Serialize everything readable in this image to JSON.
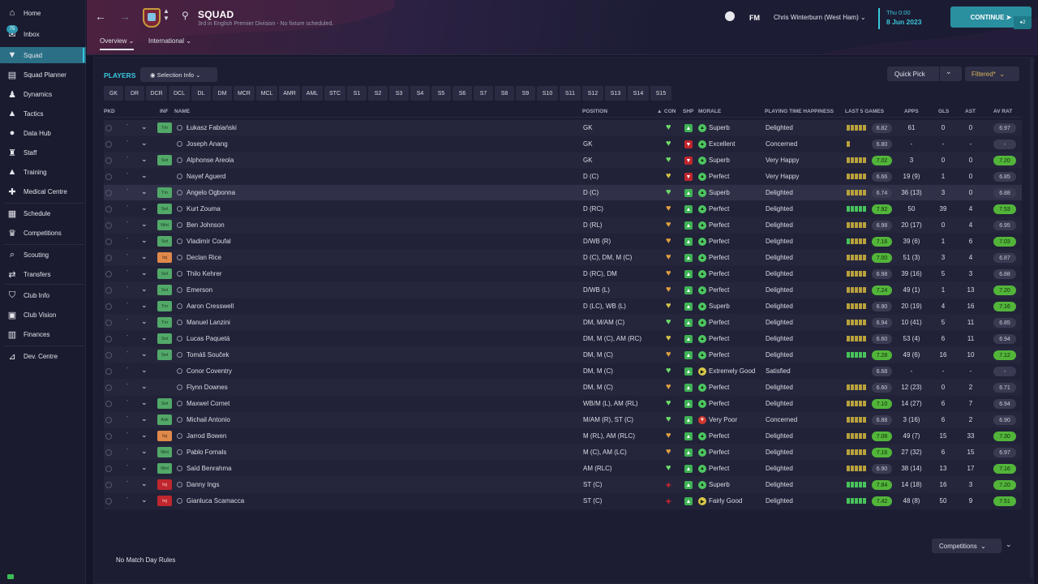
{
  "sidebar": {
    "items": [
      {
        "label": "Home",
        "icon": "home-icon"
      },
      {
        "label": "Inbox",
        "icon": "inbox-icon",
        "badge": "75"
      },
      {
        "label": "Squad",
        "icon": "shirt-icon"
      },
      {
        "label": "Squad Planner",
        "icon": "clipboard-icon"
      },
      {
        "label": "Dynamics",
        "icon": "dynamics-icon"
      },
      {
        "label": "Tactics",
        "icon": "tactics-icon"
      },
      {
        "label": "Data Hub",
        "icon": "data-hub-icon"
      },
      {
        "label": "Staff",
        "icon": "staff-icon"
      },
      {
        "label": "Training",
        "icon": "training-icon"
      },
      {
        "label": "Medical Centre",
        "icon": "medical-icon"
      },
      {
        "label": "Schedule",
        "icon": "calendar-icon"
      },
      {
        "label": "Competitions",
        "icon": "trophy-icon"
      },
      {
        "label": "Scouting",
        "icon": "scouting-icon"
      },
      {
        "label": "Transfers",
        "icon": "transfers-icon"
      },
      {
        "label": "Club Info",
        "icon": "shield-icon"
      },
      {
        "label": "Club Vision",
        "icon": "vision-icon"
      },
      {
        "label": "Finances",
        "icon": "finances-icon"
      },
      {
        "label": "Dev. Centre",
        "icon": "dev-centre-icon"
      }
    ],
    "active": "Squad"
  },
  "header": {
    "title": "SQUAD",
    "subtitle": "3rd in English Premier Division - No fixture scheduled.",
    "tabs": [
      "Overview",
      "International"
    ],
    "fm_label": "FM",
    "manager": "Chris Winterburn (West Ham)",
    "date_day": "Thu 0:00",
    "date": "8 Jun 2023",
    "continue_label": "CONTINUE",
    "continue_count": "2"
  },
  "players_title": "PLAYERS",
  "selection_info_label": "Selection Info",
  "quick_pick_label": "Quick Pick",
  "filtered_label": "Filtered*",
  "position_filters": [
    "GK",
    "DR",
    "DCR",
    "DCL",
    "DL",
    "DM",
    "MCR",
    "MCL",
    "AMR",
    "AML",
    "STC",
    "S1",
    "S2",
    "S3",
    "S4",
    "S5",
    "S6",
    "S7",
    "S8",
    "S9",
    "S10",
    "S11",
    "S12",
    "S13",
    "S14",
    "S15"
  ],
  "columns": {
    "pkd": "PKD",
    "inf": "INF",
    "name": "NAME",
    "position": "POSITION",
    "con": "CON",
    "shp": "SHP",
    "morale": "MORALE",
    "happiness": "PLAYING TIME HAPPINESS",
    "last5": "LAST 5 GAMES",
    "apps": "APPS",
    "gls": "GLS",
    "ast": "AST",
    "avrat": "AV RAT"
  },
  "players": [
    {
      "inf": "Tm",
      "name": "Łukasz Fabiański",
      "position": "GK",
      "con": "g",
      "shp": "g",
      "morale_icon": "g",
      "morale": "Superb",
      "happiness": "Delighted",
      "bars": "yyyyy",
      "last5": "6.82",
      "last5_good": false,
      "apps": "61",
      "gls": "0",
      "ast": "0",
      "avrat": "6.97",
      "avrat_good": false
    },
    {
      "inf": "",
      "name": "Joseph Anang",
      "position": "GK",
      "con": "g",
      "shp": "r",
      "morale_icon": "g",
      "morale": "Excellent",
      "happiness": "Concerned",
      "bars": "y",
      "last5": "6.80",
      "last5_good": false,
      "apps": "-",
      "gls": "-",
      "ast": "-",
      "avrat": "-",
      "avrat_good": false
    },
    {
      "inf": "Set",
      "name": "Alphonse Areola",
      "position": "GK",
      "con": "g",
      "shp": "r",
      "morale_icon": "g",
      "morale": "Superb",
      "happiness": "Very Happy",
      "bars": "yyyyy",
      "last5": "7.02",
      "last5_good": true,
      "apps": "3",
      "gls": "0",
      "ast": "0",
      "avrat": "7.20",
      "avrat_good": true
    },
    {
      "inf": "",
      "name": "Nayef Aguerd",
      "position": "D (C)",
      "con": "y",
      "shp": "r",
      "morale_icon": "g",
      "morale": "Perfect",
      "happiness": "Very Happy",
      "bars": "yyyyy",
      "last5": "6.66",
      "last5_good": false,
      "apps": "19 (9)",
      "gls": "1",
      "ast": "0",
      "avrat": "6.85",
      "avrat_good": false
    },
    {
      "inf": "Tm",
      "name": "Angelo Ogbonna",
      "position": "D (C)",
      "con": "g",
      "shp": "g",
      "morale_icon": "g",
      "morale": "Superb",
      "happiness": "Delighted",
      "bars": "yyyyy",
      "last5": "6.74",
      "last5_good": false,
      "apps": "36 (13)",
      "gls": "3",
      "ast": "0",
      "avrat": "6.88",
      "avrat_good": false
    },
    {
      "inf": "Set",
      "name": "Kurt Zouma",
      "position": "D (RC)",
      "con": "o",
      "shp": "g",
      "morale_icon": "g",
      "morale": "Perfect",
      "happiness": "Delighted",
      "bars": "ggggg",
      "last5": "7.92",
      "last5_good": true,
      "apps": "50",
      "gls": "39",
      "ast": "4",
      "avrat": "7.53",
      "avrat_good": true
    },
    {
      "inf": "Wnt",
      "name": "Ben Johnson",
      "position": "D (RL)",
      "con": "o",
      "shp": "g",
      "morale_icon": "g",
      "morale": "Perfect",
      "happiness": "Delighted",
      "bars": "yyyyy",
      "last5": "6.98",
      "last5_good": false,
      "apps": "20 (17)",
      "gls": "0",
      "ast": "4",
      "avrat": "6.95",
      "avrat_good": false
    },
    {
      "inf": "Set",
      "name": "Vladimír Coufal",
      "position": "D/WB (R)",
      "con": "o",
      "shp": "g",
      "morale_icon": "g",
      "morale": "Perfect",
      "happiness": "Delighted",
      "bars": "gyyyy",
      "last5": "7.16",
      "last5_good": true,
      "apps": "39 (6)",
      "gls": "1",
      "ast": "6",
      "avrat": "7.03",
      "avrat_good": true
    },
    {
      "inf": "Inj-o",
      "name": "Declan Rice",
      "position": "D (C), DM, M (C)",
      "con": "o",
      "shp": "g",
      "morale_icon": "g",
      "morale": "Perfect",
      "happiness": "Delighted",
      "bars": "yyyyy",
      "last5": "7.00",
      "last5_good": true,
      "apps": "51 (3)",
      "gls": "3",
      "ast": "4",
      "avrat": "6.87",
      "avrat_good": false
    },
    {
      "inf": "Set",
      "name": "Thilo Kehrer",
      "position": "D (RC), DM",
      "con": "o",
      "shp": "g",
      "morale_icon": "g",
      "morale": "Perfect",
      "happiness": "Delighted",
      "bars": "yyyyy",
      "last5": "6.98",
      "last5_good": false,
      "apps": "39 (16)",
      "gls": "5",
      "ast": "3",
      "avrat": "6.88",
      "avrat_good": false
    },
    {
      "inf": "Set",
      "name": "Emerson",
      "position": "D/WB (L)",
      "con": "o",
      "shp": "g",
      "morale_icon": "g",
      "morale": "Perfect",
      "happiness": "Delighted",
      "bars": "yyyyy",
      "last5": "7.24",
      "last5_good": true,
      "apps": "49 (1)",
      "gls": "1",
      "ast": "13",
      "avrat": "7.20",
      "avrat_good": true
    },
    {
      "inf": "Tm",
      "name": "Aaron Cresswell",
      "position": "D (LC), WB (L)",
      "con": "y",
      "shp": "g",
      "morale_icon": "g",
      "morale": "Superb",
      "happiness": "Delighted",
      "bars": "yyyyy",
      "last5": "6.90",
      "last5_good": false,
      "apps": "20 (19)",
      "gls": "4",
      "ast": "16",
      "avrat": "7.16",
      "avrat_good": true
    },
    {
      "inf": "Tm",
      "name": "Manuel Lanzini",
      "position": "DM, M/AM (C)",
      "con": "g",
      "shp": "g",
      "morale_icon": "g",
      "morale": "Perfect",
      "happiness": "Delighted",
      "bars": "yyyyy",
      "last5": "6.94",
      "last5_good": false,
      "apps": "10 (41)",
      "gls": "5",
      "ast": "11",
      "avrat": "6.85",
      "avrat_good": false
    },
    {
      "inf": "Set",
      "name": "Lucas Paquetá",
      "position": "DM, M (C), AM (RC)",
      "con": "y",
      "shp": "g",
      "morale_icon": "g",
      "morale": "Perfect",
      "happiness": "Delighted",
      "bars": "yyyyy",
      "last5": "6.60",
      "last5_good": false,
      "apps": "53 (4)",
      "gls": "6",
      "ast": "11",
      "avrat": "6.94",
      "avrat_good": false
    },
    {
      "inf": "Set",
      "name": "Tomáš Souček",
      "position": "DM, M (C)",
      "con": "o",
      "shp": "g",
      "morale_icon": "g",
      "morale": "Perfect",
      "happiness": "Delighted",
      "bars": "ggggg",
      "last5": "7.28",
      "last5_good": true,
      "apps": "49 (6)",
      "gls": "16",
      "ast": "10",
      "avrat": "7.12",
      "avrat_good": true
    },
    {
      "inf": "",
      "name": "Conor Coventry",
      "position": "DM, M (C)",
      "con": "g",
      "shp": "g",
      "morale_icon": "y",
      "morale": "Extremely Good",
      "happiness": "Satisfied",
      "bars": "",
      "last5": "6.68",
      "last5_good": false,
      "apps": "-",
      "gls": "-",
      "ast": "-",
      "avrat": "-",
      "avrat_good": false
    },
    {
      "inf": "",
      "name": "Flynn Downes",
      "position": "DM, M (C)",
      "con": "o",
      "shp": "g",
      "morale_icon": "g",
      "morale": "Perfect",
      "happiness": "Delighted",
      "bars": "yyyyy",
      "last5": "6.60",
      "last5_good": false,
      "apps": "12 (23)",
      "gls": "0",
      "ast": "2",
      "avrat": "6.71",
      "avrat_good": false
    },
    {
      "inf": "Set",
      "name": "Maxwel Cornet",
      "position": "WB/M (L), AM (RL)",
      "con": "g",
      "shp": "g",
      "morale_icon": "g",
      "morale": "Perfect",
      "happiness": "Delighted",
      "bars": "yyyyy",
      "last5": "7.10",
      "last5_good": true,
      "apps": "14 (27)",
      "gls": "6",
      "ast": "7",
      "avrat": "6.94",
      "avrat_good": false
    },
    {
      "inf": "Ask",
      "name": "Michail Antonio",
      "position": "M/AM (R), ST (C)",
      "con": "g",
      "shp": "g",
      "morale_icon": "r",
      "morale": "Very Poor",
      "happiness": "Concerned",
      "bars": "yyyyy",
      "last5": "6.88",
      "last5_good": false,
      "apps": "3 (16)",
      "gls": "6",
      "ast": "2",
      "avrat": "6.90",
      "avrat_good": false
    },
    {
      "inf": "Inj-o",
      "name": "Jarrod Bowen",
      "position": "M (RL), AM (RLC)",
      "con": "o",
      "shp": "g",
      "morale_icon": "g",
      "morale": "Perfect",
      "happiness": "Delighted",
      "bars": "yyyyy",
      "last5": "7.08",
      "last5_good": true,
      "apps": "49 (7)",
      "gls": "15",
      "ast": "33",
      "avrat": "7.30",
      "avrat_good": true
    },
    {
      "inf": "Wnt",
      "name": "Pablo Fornals",
      "position": "M (C), AM (LC)",
      "con": "o",
      "shp": "g",
      "morale_icon": "g",
      "morale": "Perfect",
      "happiness": "Delighted",
      "bars": "yyyyy",
      "last5": "7.16",
      "last5_good": true,
      "apps": "27 (32)",
      "gls": "6",
      "ast": "15",
      "avrat": "6.97",
      "avrat_good": false
    },
    {
      "inf": "Wnt",
      "name": "Saïd Benrahma",
      "position": "AM (RLC)",
      "con": "g",
      "shp": "g",
      "morale_icon": "g",
      "morale": "Perfect",
      "happiness": "Delighted",
      "bars": "yyyyy",
      "last5": "6.90",
      "last5_good": false,
      "apps": "38 (14)",
      "gls": "13",
      "ast": "17",
      "avrat": "7.16",
      "avrat_good": true
    },
    {
      "inf": "Inj-r",
      "name": "Danny Ings",
      "position": "ST (C)",
      "con": "r",
      "shp": "g",
      "morale_icon": "g",
      "morale": "Superb",
      "happiness": "Delighted",
      "bars": "ggggg",
      "last5": "7.84",
      "last5_good": true,
      "apps": "14 (18)",
      "gls": "16",
      "ast": "3",
      "avrat": "7.20",
      "avrat_good": true
    },
    {
      "inf": "Inj-r",
      "name": "Gianluca Scamacca",
      "position": "ST (C)",
      "con": "r",
      "shp": "g",
      "morale_icon": "y",
      "morale": "Fairly Good",
      "happiness": "Delighted",
      "bars": "ggggg",
      "last5": "7.42",
      "last5_good": true,
      "apps": "48 (8)",
      "gls": "50",
      "ast": "9",
      "avrat": "7.51",
      "avrat_good": true
    }
  ],
  "inf_labels": {
    "Tm": "Tm",
    "Set": "Set",
    "Wnt": "Wnt",
    "Ask": "Ask",
    "Inj-o": "Inj",
    "Inj-r": "Inj"
  },
  "competitions_label": "Competitions",
  "match_day_rules": "No Match Day Rules"
}
